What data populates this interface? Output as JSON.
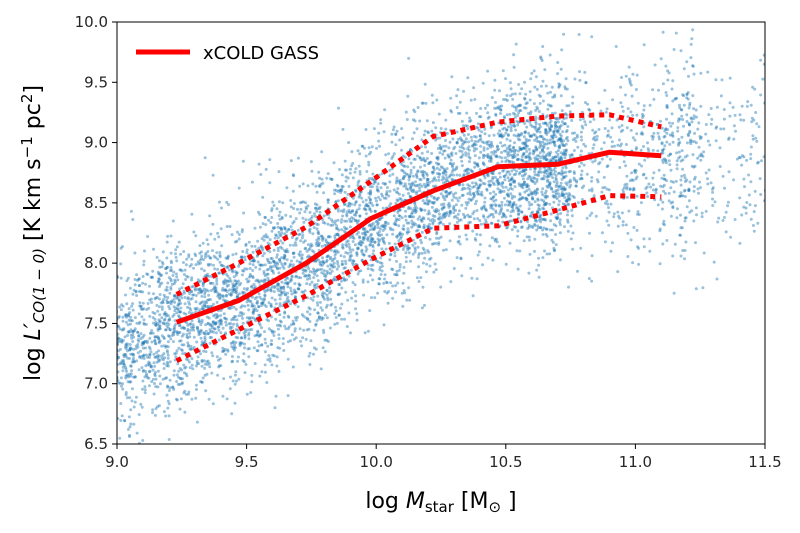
{
  "chart_data": {
    "type": "scatter",
    "xlim": [
      9.0,
      11.5
    ],
    "ylim": [
      6.5,
      10.0
    ],
    "x_ticks": [
      "9.0",
      "9.5",
      "10.0",
      "10.5",
      "11.0",
      "11.5"
    ],
    "y_ticks": [
      "6.5",
      "7.0",
      "7.5",
      "8.0",
      "8.5",
      "9.0",
      "9.5",
      "10.0"
    ],
    "xlabel": {
      "prefix": "log ",
      "var": "M",
      "sub": "star",
      "unit_open": " [M",
      "unit_sub": "⊙",
      "unit_close": " ]"
    },
    "ylabel": {
      "prefix": "log ",
      "var": "L′",
      "sub": "CO(1 − 0)",
      "unit_open": " [K km s",
      "unit_sup1": "−1",
      "unit_mid": " pc",
      "unit_sup2": "2",
      "unit_close": "]"
    },
    "scatter": {
      "color": "#1f77b4",
      "relation": {
        "x": [
          9.0,
          9.25,
          9.5,
          9.75,
          10.0,
          10.25,
          10.5,
          10.75,
          11.0,
          11.5
        ],
        "y": [
          7.3,
          7.5,
          7.72,
          8.02,
          8.36,
          8.6,
          8.8,
          8.85,
          8.9,
          8.9
        ]
      }
    },
    "series": [
      {
        "name": "xCOLD GASS",
        "style": "solid",
        "color": "#ff0000",
        "x": [
          9.23,
          9.47,
          9.73,
          9.98,
          10.22,
          10.47,
          10.7,
          10.9,
          11.1
        ],
        "y": [
          7.51,
          7.69,
          8.0,
          8.37,
          8.6,
          8.8,
          8.82,
          8.92,
          8.89
        ]
      },
      {
        "name": "",
        "style": "dotted",
        "color": "#ff0000",
        "x": [
          9.23,
          9.47,
          9.73,
          9.98,
          10.22,
          10.47,
          10.7,
          10.9,
          11.1
        ],
        "y": [
          7.74,
          8.0,
          8.3,
          8.68,
          9.05,
          9.17,
          9.22,
          9.23,
          9.13
        ]
      },
      {
        "name": "",
        "style": "dotted",
        "color": "#ff0000",
        "x": [
          9.23,
          9.47,
          9.73,
          9.98,
          10.22,
          10.47,
          10.7,
          10.9,
          11.1
        ],
        "y": [
          7.19,
          7.45,
          7.73,
          8.03,
          8.29,
          8.31,
          8.44,
          8.56,
          8.55
        ]
      }
    ],
    "legend": {
      "position": "top-left",
      "label": "xCOLD GASS"
    },
    "grid": false
  }
}
